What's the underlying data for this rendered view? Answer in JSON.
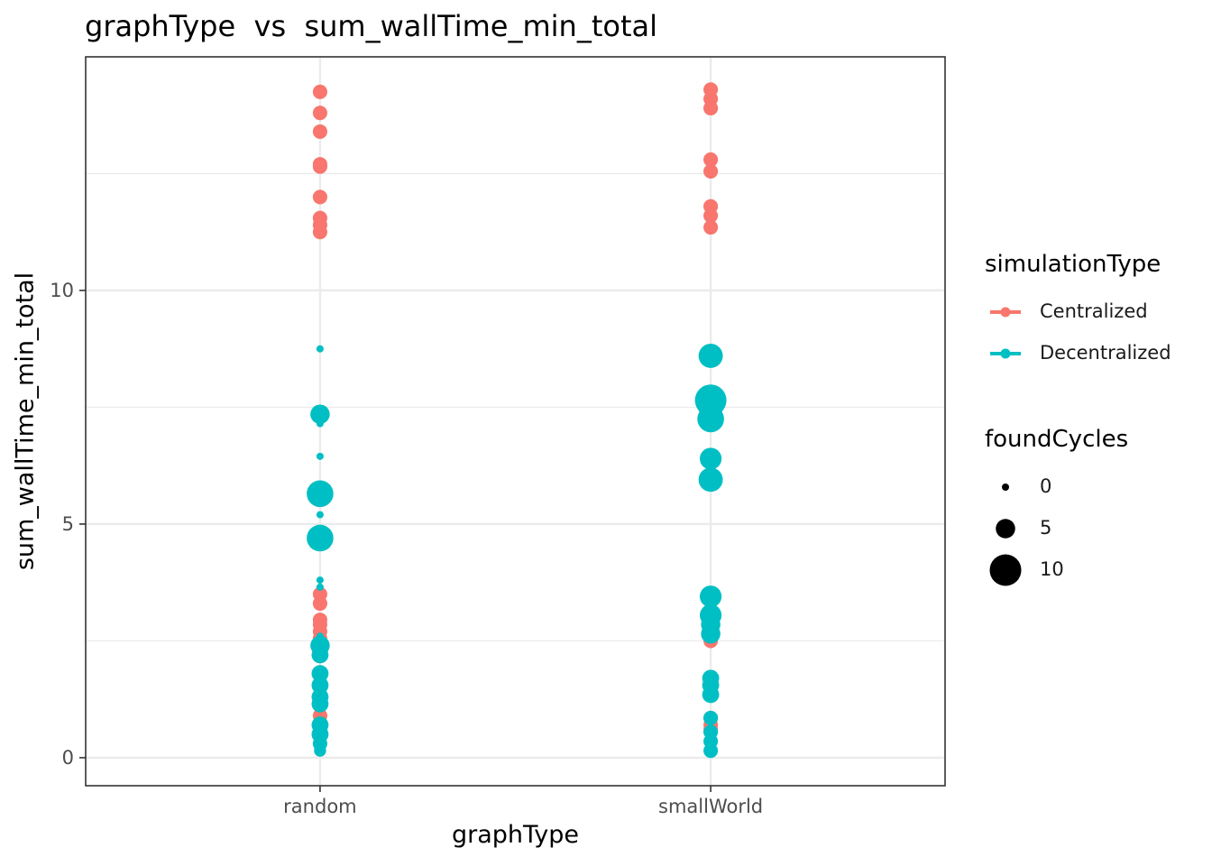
{
  "chart_data": {
    "type": "scatter",
    "title": "graphType  vs  sum_wallTime_min_total",
    "xlabel": "graphType",
    "ylabel": "sum_wallTime_min_total",
    "categories": [
      "random",
      "smallWorld"
    ],
    "ylim": [
      -0.6,
      15.0
    ],
    "yticks": [
      0,
      5,
      10
    ],
    "grid": true,
    "legend_position": "right",
    "color_legend": {
      "title": "simulationType",
      "items": [
        {
          "label": "Centralized",
          "color": "#F8766D"
        },
        {
          "label": "Decentralized",
          "color": "#00BFC4"
        }
      ]
    },
    "size_legend": {
      "title": "foundCycles",
      "items": [
        {
          "label": "0",
          "value": 0
        },
        {
          "label": "5",
          "value": 5
        },
        {
          "label": "10",
          "value": 10
        }
      ]
    },
    "series": [
      {
        "name": "Centralized",
        "color": "#F8766D",
        "points": [
          {
            "x": "random",
            "y": 14.25,
            "size": 3
          },
          {
            "x": "random",
            "y": 13.8,
            "size": 3
          },
          {
            "x": "random",
            "y": 13.4,
            "size": 3
          },
          {
            "x": "random",
            "y": 12.7,
            "size": 3
          },
          {
            "x": "random",
            "y": 12.65,
            "size": 3
          },
          {
            "x": "random",
            "y": 12.0,
            "size": 3
          },
          {
            "x": "random",
            "y": 11.55,
            "size": 3
          },
          {
            "x": "random",
            "y": 11.4,
            "size": 3
          },
          {
            "x": "random",
            "y": 11.25,
            "size": 3
          },
          {
            "x": "random",
            "y": 3.5,
            "size": 3
          },
          {
            "x": "random",
            "y": 3.3,
            "size": 3
          },
          {
            "x": "random",
            "y": 2.95,
            "size": 3
          },
          {
            "x": "random",
            "y": 2.85,
            "size": 3
          },
          {
            "x": "random",
            "y": 2.7,
            "size": 3
          },
          {
            "x": "random",
            "y": 2.55,
            "size": 3
          },
          {
            "x": "random",
            "y": 2.35,
            "size": 3
          },
          {
            "x": "random",
            "y": 0.9,
            "size": 3
          },
          {
            "x": "random",
            "y": 0.75,
            "size": 3
          },
          {
            "x": "random",
            "y": 0.6,
            "size": 3
          },
          {
            "x": "smallWorld",
            "y": 14.3,
            "size": 3
          },
          {
            "x": "smallWorld",
            "y": 14.1,
            "size": 3
          },
          {
            "x": "smallWorld",
            "y": 13.9,
            "size": 3
          },
          {
            "x": "smallWorld",
            "y": 12.8,
            "size": 3
          },
          {
            "x": "smallWorld",
            "y": 12.55,
            "size": 3
          },
          {
            "x": "smallWorld",
            "y": 11.8,
            "size": 3
          },
          {
            "x": "smallWorld",
            "y": 11.6,
            "size": 3
          },
          {
            "x": "smallWorld",
            "y": 11.35,
            "size": 3
          },
          {
            "x": "smallWorld",
            "y": 3.4,
            "size": 3
          },
          {
            "x": "smallWorld",
            "y": 2.6,
            "size": 3
          },
          {
            "x": "smallWorld",
            "y": 2.5,
            "size": 3
          },
          {
            "x": "smallWorld",
            "y": 0.85,
            "size": 3
          },
          {
            "x": "smallWorld",
            "y": 0.7,
            "size": 3
          },
          {
            "x": "smallWorld",
            "y": 0.6,
            "size": 3
          }
        ]
      },
      {
        "name": "Decentralized",
        "color": "#00BFC4",
        "points": [
          {
            "x": "random",
            "y": 8.75,
            "size": 0
          },
          {
            "x": "random",
            "y": 7.35,
            "size": 5
          },
          {
            "x": "random",
            "y": 7.15,
            "size": 0
          },
          {
            "x": "random",
            "y": 6.45,
            "size": 0
          },
          {
            "x": "random",
            "y": 5.65,
            "size": 8
          },
          {
            "x": "random",
            "y": 5.2,
            "size": 0
          },
          {
            "x": "random",
            "y": 4.7,
            "size": 8
          },
          {
            "x": "random",
            "y": 3.8,
            "size": 0
          },
          {
            "x": "random",
            "y": 3.65,
            "size": 0
          },
          {
            "x": "random",
            "y": 2.6,
            "size": 0
          },
          {
            "x": "random",
            "y": 2.4,
            "size": 5
          },
          {
            "x": "random",
            "y": 2.2,
            "size": 4
          },
          {
            "x": "random",
            "y": 1.8,
            "size": 4
          },
          {
            "x": "random",
            "y": 1.55,
            "size": 4
          },
          {
            "x": "random",
            "y": 1.3,
            "size": 4
          },
          {
            "x": "random",
            "y": 1.15,
            "size": 4
          },
          {
            "x": "random",
            "y": 0.7,
            "size": 4
          },
          {
            "x": "random",
            "y": 0.5,
            "size": 4
          },
          {
            "x": "random",
            "y": 0.3,
            "size": 3
          },
          {
            "x": "random",
            "y": 0.15,
            "size": 2
          },
          {
            "x": "smallWorld",
            "y": 8.6,
            "size": 7
          },
          {
            "x": "smallWorld",
            "y": 7.65,
            "size": 10
          },
          {
            "x": "smallWorld",
            "y": 7.55,
            "size": 8
          },
          {
            "x": "smallWorld",
            "y": 7.25,
            "size": 8
          },
          {
            "x": "smallWorld",
            "y": 6.4,
            "size": 6
          },
          {
            "x": "smallWorld",
            "y": 5.95,
            "size": 7
          },
          {
            "x": "smallWorld",
            "y": 3.45,
            "size": 6
          },
          {
            "x": "smallWorld",
            "y": 3.05,
            "size": 6
          },
          {
            "x": "smallWorld",
            "y": 2.85,
            "size": 5
          },
          {
            "x": "smallWorld",
            "y": 2.65,
            "size": 5
          },
          {
            "x": "smallWorld",
            "y": 1.7,
            "size": 4
          },
          {
            "x": "smallWorld",
            "y": 1.55,
            "size": 4
          },
          {
            "x": "smallWorld",
            "y": 1.35,
            "size": 4
          },
          {
            "x": "smallWorld",
            "y": 0.85,
            "size": 3
          },
          {
            "x": "smallWorld",
            "y": 0.55,
            "size": 3
          },
          {
            "x": "smallWorld",
            "y": 0.35,
            "size": 3
          },
          {
            "x": "smallWorld",
            "y": 0.15,
            "size": 3
          }
        ]
      }
    ]
  }
}
